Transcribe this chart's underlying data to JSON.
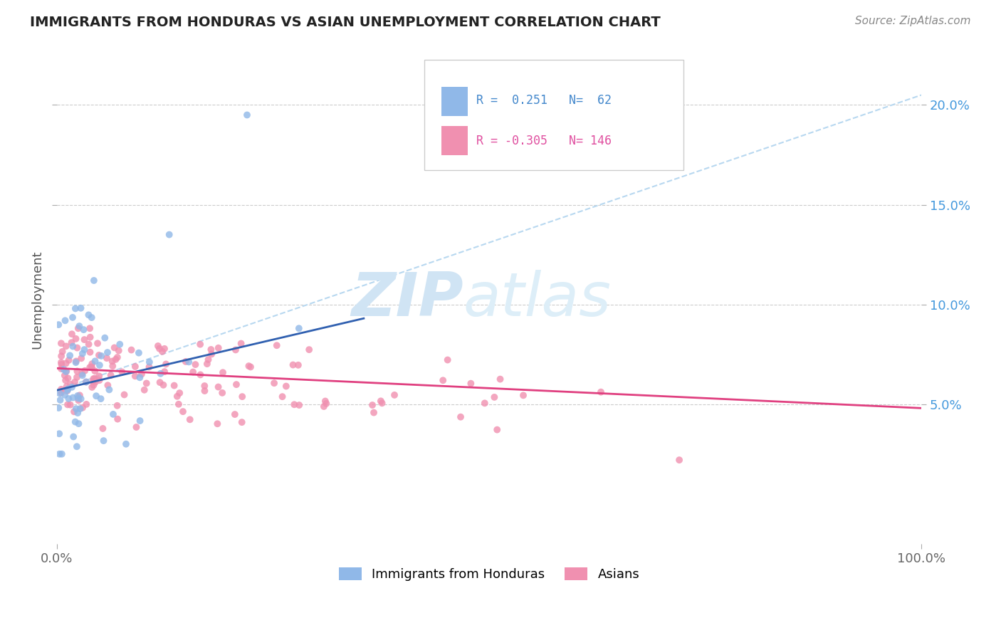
{
  "title": "IMMIGRANTS FROM HONDURAS VS ASIAN UNEMPLOYMENT CORRELATION CHART",
  "source": "Source: ZipAtlas.com",
  "ylabel": "Unemployment",
  "watermark_zip": "ZIP",
  "watermark_atlas": "atlas",
  "blue_color": "#90b8e8",
  "pink_color": "#f090b0",
  "blue_line_color": "#3060b0",
  "pink_line_color": "#e04080",
  "dashed_line_color": "#b8d8f0",
  "ytick_values": [
    0.05,
    0.1,
    0.15,
    0.2
  ],
  "ytick_labels": [
    "5.0%",
    "10.0%",
    "15.0%",
    "20.0%"
  ],
  "xlim": [
    0.0,
    1.0
  ],
  "ylim": [
    -0.02,
    0.225
  ],
  "blue_line_x": [
    0.0,
    0.355
  ],
  "blue_line_y": [
    0.057,
    0.093
  ],
  "pink_line_x": [
    0.0,
    1.0
  ],
  "pink_line_y": [
    0.068,
    0.048
  ],
  "dash_line_x": [
    0.0,
    1.0
  ],
  "dash_line_y": [
    0.057,
    0.205
  ],
  "legend_text1": "R =  0.251   N=  62",
  "legend_text2": "R = -0.305   N= 146",
  "legend_color1": "#4488cc",
  "legend_color2": "#e050a0",
  "seed_blue": 7,
  "seed_pink": 13,
  "n_blue": 62,
  "n_pink": 146
}
